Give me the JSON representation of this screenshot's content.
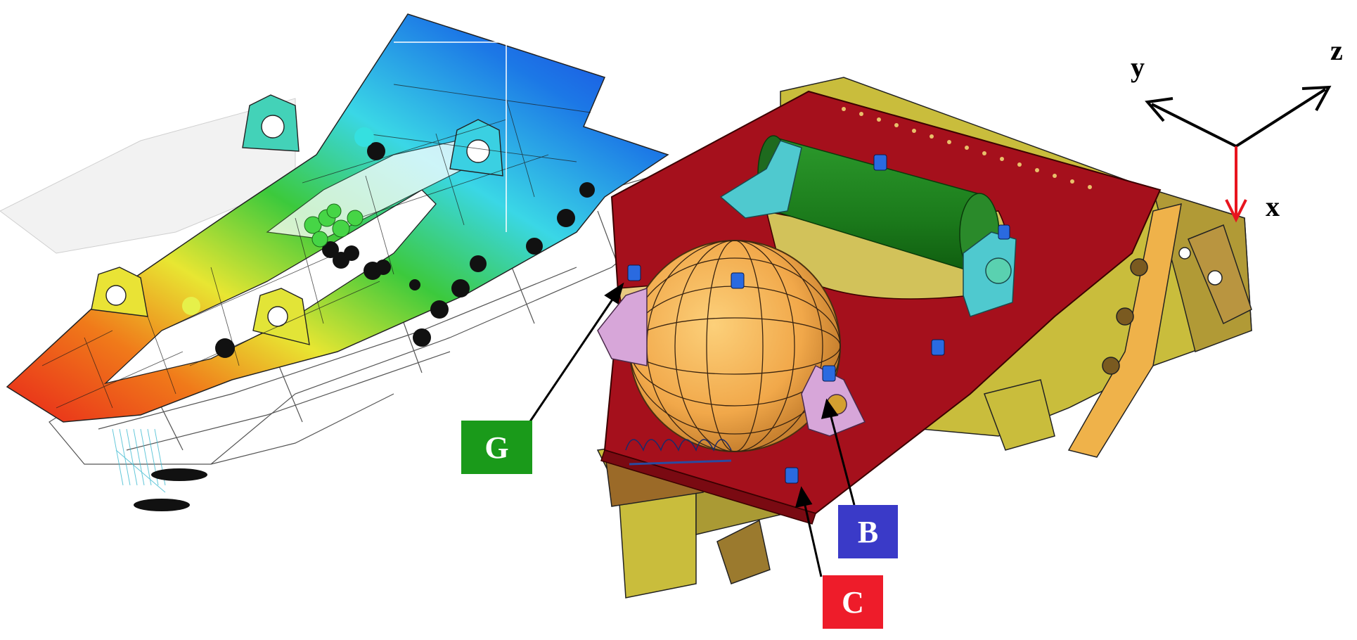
{
  "callouts": {
    "g": {
      "label": "G",
      "color": "#1a9a1a"
    },
    "b": {
      "label": "B",
      "color": "#3a3ac8"
    },
    "c": {
      "label": "C",
      "color": "#ee1c2a"
    }
  },
  "axes": {
    "x": "x",
    "y": "y",
    "z": "z",
    "x_color": "#e8141e",
    "yz_color": "#000000"
  },
  "colors": {
    "fem_red": "#e8331a",
    "fem_yellow": "#e8e632",
    "fem_green": "#3cc93c",
    "fem_cyan": "#3ad7e6",
    "fem_blue": "#1c48e6",
    "base_plate": "#a5101c",
    "frame": "#c9bd3c",
    "frame_dark": "#8d7a2a",
    "cylinder": "#1e7a1e",
    "sphere": "#f5b75a",
    "bearing_cyan": "#4fc9cf",
    "bearing_pink": "#d7a6d9"
  }
}
